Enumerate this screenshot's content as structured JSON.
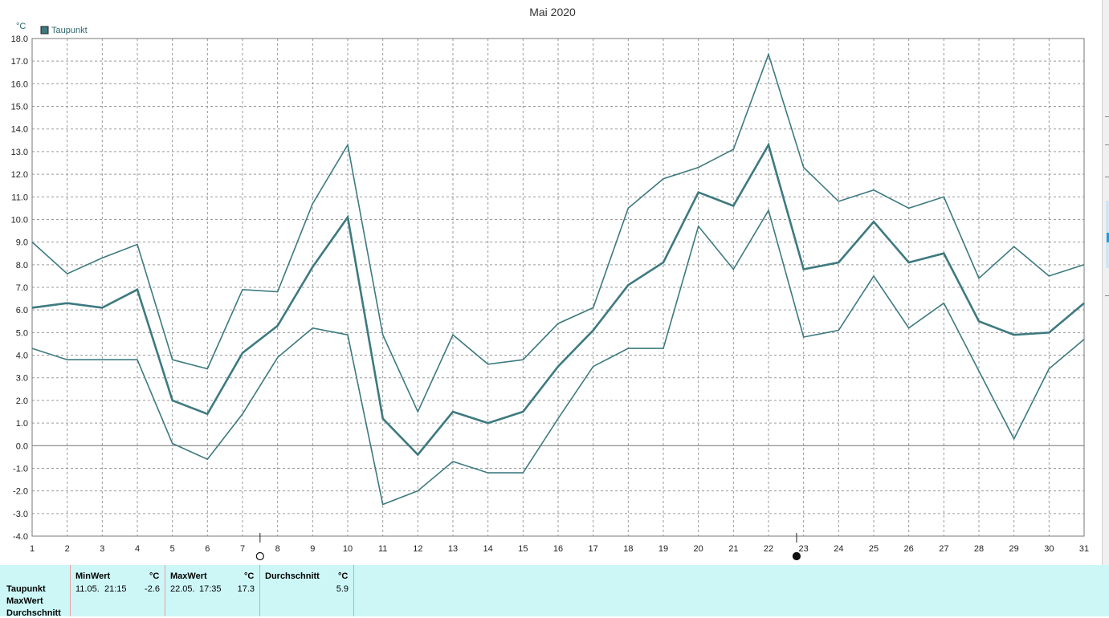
{
  "chart_data": {
    "type": "line",
    "title": "Mai 2020",
    "unit": "°C",
    "legend": [
      {
        "name": "Taupunkt",
        "color": "#3d7a7f"
      }
    ],
    "legend_position": "top-left",
    "ylim": [
      -4.0,
      18.0
    ],
    "y_ticks": [
      "18.0",
      "17.0",
      "16.0",
      "15.0",
      "14.0",
      "13.0",
      "12.0",
      "11.0",
      "10.0",
      "9.0",
      "8.0",
      "7.0",
      "6.0",
      "5.0",
      "4.0",
      "3.0",
      "2.0",
      "1.0",
      "0.0",
      "-1.0",
      "-2.0",
      "-3.0",
      "-4.0"
    ],
    "x": [
      1,
      2,
      3,
      4,
      5,
      6,
      7,
      8,
      9,
      10,
      11,
      12,
      13,
      14,
      15,
      16,
      17,
      18,
      19,
      20,
      21,
      22,
      23,
      24,
      25,
      26,
      27,
      28,
      29,
      30,
      31
    ],
    "grid": true,
    "series": [
      {
        "role": "max",
        "color": "#3d7a7f",
        "values": [
          9.0,
          7.6,
          8.3,
          8.9,
          3.8,
          3.4,
          6.9,
          6.8,
          10.7,
          13.3,
          4.9,
          1.5,
          4.9,
          3.6,
          3.8,
          5.4,
          6.1,
          10.5,
          11.8,
          12.3,
          13.1,
          17.3,
          12.3,
          10.8,
          11.3,
          10.5,
          11.0,
          7.4,
          8.8,
          7.5,
          8.0
        ]
      },
      {
        "role": "average",
        "color": "#3d7a7f",
        "values": [
          6.1,
          6.3,
          6.1,
          6.9,
          2.0,
          1.4,
          4.1,
          5.3,
          7.9,
          10.1,
          1.2,
          -0.4,
          1.5,
          1.0,
          1.5,
          3.5,
          5.1,
          7.1,
          8.1,
          11.2,
          10.6,
          13.3,
          7.8,
          8.1,
          9.9,
          8.1,
          8.5,
          5.5,
          4.9,
          5.0,
          6.3
        ]
      },
      {
        "role": "min",
        "color": "#3d7a7f",
        "values": [
          4.3,
          3.8,
          3.8,
          3.8,
          0.1,
          -0.6,
          1.4,
          3.9,
          5.2,
          4.9,
          -2.6,
          -2.0,
          -0.7,
          -1.2,
          -1.2,
          1.2,
          3.5,
          4.3,
          4.3,
          9.7,
          7.8,
          10.4,
          4.8,
          5.1,
          7.5,
          5.2,
          6.3,
          3.3,
          0.3,
          3.4,
          4.7
        ]
      }
    ],
    "moon_phases": [
      {
        "day": 7.5,
        "phase": "full-moon-icon"
      },
      {
        "day": 22.8,
        "phase": "new-moon-icon"
      }
    ]
  },
  "stats": {
    "row_labels": [
      "Taupunkt",
      "MaxWert",
      "Durchschnitt"
    ],
    "columns": [
      {
        "header": "MinWert",
        "unit": "°C",
        "date": "11.05.",
        "time": "21:15",
        "value": "-2.6"
      },
      {
        "header": "MaxWert",
        "unit": "°C",
        "date": "22.05.",
        "time": "17:35",
        "value": "17.3"
      },
      {
        "header": "Durchschnitt",
        "unit": "°C",
        "value": "5.9"
      }
    ]
  }
}
